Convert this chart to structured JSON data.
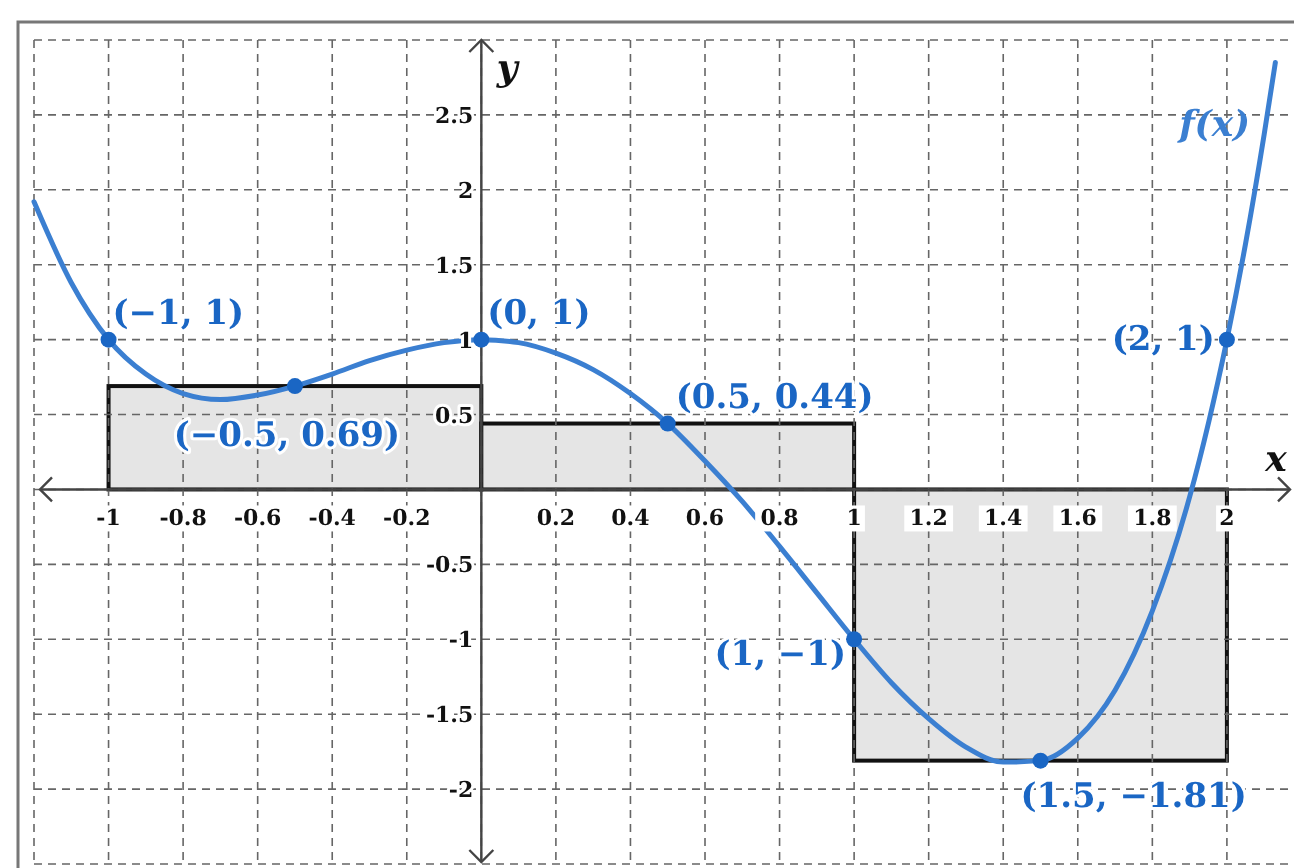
{
  "chart_data": {
    "type": "line",
    "xlabel": "x",
    "ylabel": "y",
    "xlim": [
      -1.2,
      2.18
    ],
    "ylim": [
      -2.5,
      3
    ],
    "xticks": [
      {
        "value": -1.2,
        "label": null
      },
      -1,
      -0.8,
      -0.6,
      -0.4,
      -0.2,
      {
        "value": 0,
        "label": null
      },
      0.2,
      0.4,
      0.6,
      0.8,
      1,
      1.2,
      1.4,
      1.6,
      1.8,
      2
    ],
    "yticks": [
      {
        "value": -2.5,
        "label": null
      },
      -2,
      -1.5,
      -1,
      -0.5,
      {
        "value": 0,
        "label": null
      },
      0.5,
      1,
      1.5,
      2,
      2.5,
      {
        "value": 3,
        "label": null
      }
    ],
    "grid": true,
    "series": [
      {
        "type": "bar",
        "x": [
          -0.5,
          0.5,
          1.5
        ],
        "values": [
          0.69,
          0.44,
          -1.81
        ],
        "color": "#e5e5e5"
      },
      {
        "name": "f(x)",
        "color": "#3b7fd1",
        "x": [
          -1.2,
          -1.1,
          -1,
          -0.9,
          -0.8,
          -0.7,
          -0.6,
          -0.5,
          -0.4,
          -0.3,
          -0.2,
          -0.1,
          0,
          0.1,
          0.2,
          0.3,
          0.4,
          0.5,
          0.6,
          0.7,
          0.8,
          0.9,
          1,
          1.1,
          1.2,
          1.3,
          1.4,
          1.5,
          1.6,
          1.7,
          1.8,
          1.9,
          2,
          2.05,
          2.1,
          2.13
        ],
        "values": [
          1.92,
          1.38,
          1,
          0.77,
          0.64,
          0.6,
          0.63,
          0.69,
          0.77,
          0.86,
          0.93,
          0.98,
          1,
          0.98,
          0.91,
          0.8,
          0.64,
          0.44,
          0.19,
          -0.08,
          -0.38,
          -0.69,
          -1,
          -1.29,
          -1.53,
          -1.72,
          -1.82,
          -1.81,
          -1.66,
          -1.34,
          -0.81,
          -0.05,
          1,
          1.64,
          2.37,
          2.85
        ]
      },
      {
        "type": "scatter",
        "color": "#1a66c4",
        "marker": "circle",
        "x": [
          -1,
          -0.5,
          0,
          0.5,
          1,
          1.5,
          2
        ],
        "values": [
          1,
          0.69,
          1,
          0.44,
          -1,
          -1.81,
          1
        ],
        "value_labels": [
          "(−1, 1)",
          "(−0.5, 0.69)",
          "(0, 1)",
          "(0.5, 0.44)",
          "(1, −1)",
          "(1.5, −1.81)",
          "(2, 1)"
        ]
      }
    ]
  }
}
